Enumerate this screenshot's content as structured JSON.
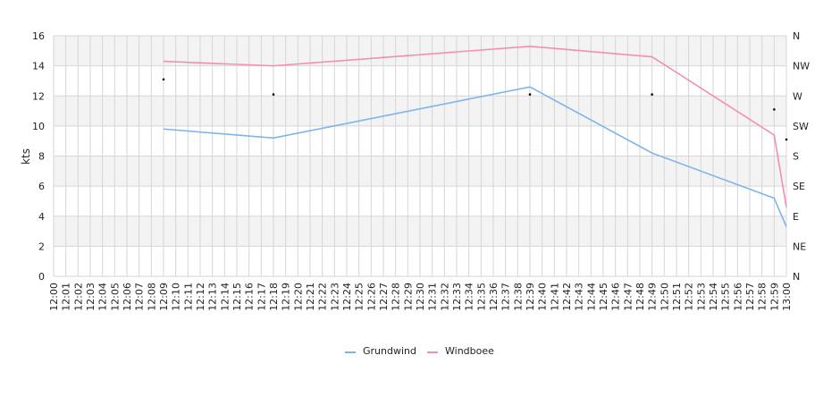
{
  "chart_data": {
    "type": "line",
    "ylabel": "kts",
    "ylim": [
      0,
      16
    ],
    "y_ticks": [
      "0",
      "2",
      "4",
      "6",
      "8",
      "10",
      "12",
      "14",
      "16"
    ],
    "y2_ticks": [
      "N",
      "NE",
      "E",
      "SE",
      "S",
      "SW",
      "W",
      "NW",
      "N"
    ],
    "x_ticks": [
      "12:00",
      "12:01",
      "12:02",
      "12:03",
      "12:04",
      "12:05",
      "12:06",
      "12:07",
      "12:08",
      "12:09",
      "12:10",
      "12:11",
      "12:12",
      "12:13",
      "12:14",
      "12:15",
      "12:16",
      "12:17",
      "12:18",
      "12:19",
      "12:20",
      "12:21",
      "12:22",
      "12:23",
      "12:24",
      "12:25",
      "12:26",
      "12:27",
      "12:28",
      "12:29",
      "12:30",
      "12:31",
      "12:32",
      "12:33",
      "12:34",
      "12:35",
      "12:36",
      "12:37",
      "12:38",
      "12:39",
      "12:40",
      "12:41",
      "12:42",
      "12:43",
      "12:44",
      "12:45",
      "12:46",
      "12:47",
      "12:48",
      "12:49",
      "12:50",
      "12:51",
      "12:52",
      "12:53",
      "12:54",
      "12:55",
      "12:56",
      "12:57",
      "12:58",
      "12:59",
      "13:00"
    ],
    "grid": true,
    "legend": "bottom-center",
    "series": [
      {
        "name": "Grundwind",
        "color": "#7cb5ec",
        "points": [
          {
            "x": "12:09",
            "y": 9.8
          },
          {
            "x": "12:18",
            "y": 9.2
          },
          {
            "x": "12:39",
            "y": 12.6
          },
          {
            "x": "12:49",
            "y": 8.2
          },
          {
            "x": "12:59",
            "y": 5.2
          },
          {
            "x": "13:00",
            "y": 3.3
          }
        ]
      },
      {
        "name": "Windboee",
        "color": "#f48fb1",
        "points": [
          {
            "x": "12:09",
            "y": 14.3
          },
          {
            "x": "12:18",
            "y": 14.0
          },
          {
            "x": "12:39",
            "y": 15.3
          },
          {
            "x": "12:49",
            "y": 14.6
          },
          {
            "x": "12:59",
            "y": 9.4
          },
          {
            "x": "13:00",
            "y": 4.6
          }
        ]
      }
    ],
    "direction_points": [
      {
        "x": "12:09",
        "y": 13.1
      },
      {
        "x": "12:18",
        "y": 12.1
      },
      {
        "x": "12:39",
        "y": 12.1
      },
      {
        "x": "12:49",
        "y": 12.1
      },
      {
        "x": "12:59",
        "y": 11.1
      },
      {
        "x": "13:00",
        "y": 9.1
      }
    ]
  }
}
